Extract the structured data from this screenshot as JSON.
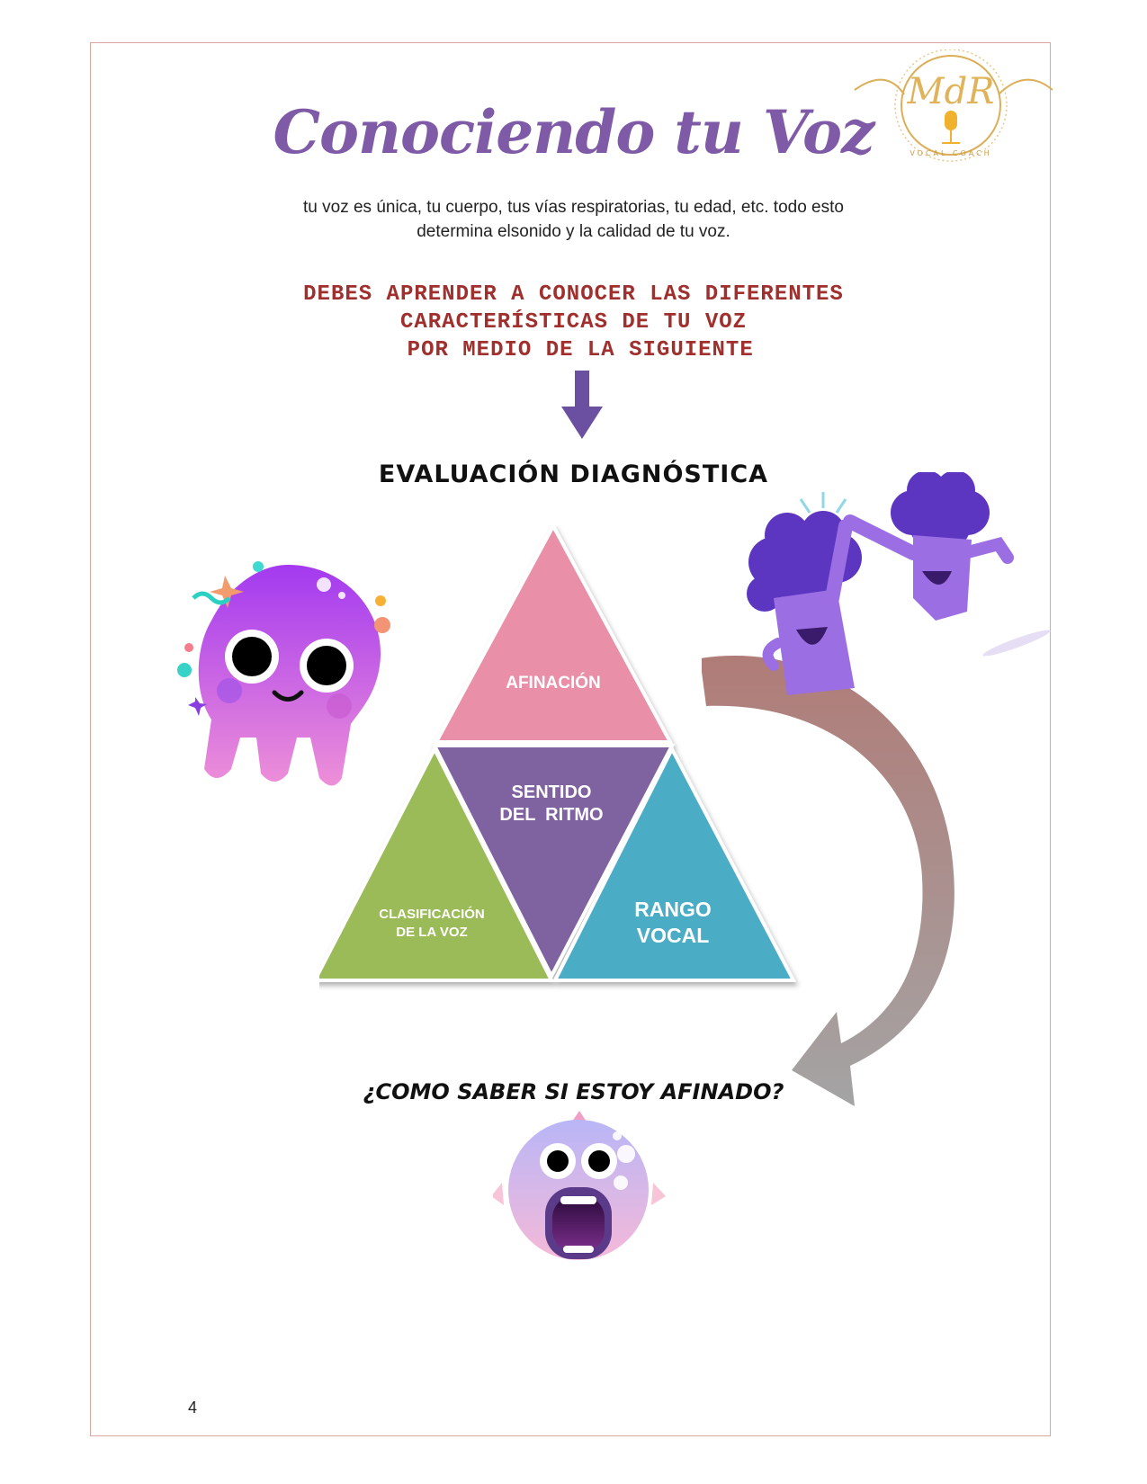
{
  "page": {
    "title": "Conociendo tu Voz",
    "intro_lines": [
      "tu voz es única, tu cuerpo, tus vías respiratorias, tu edad, etc. todo esto",
      "determina elsonido y la calidad de tu voz."
    ],
    "callout_lines": [
      "DEBES APRENDER A CONOCER LAS DIFERENTES",
      "CARACTERÍSTICAS DE TU VOZ",
      " POR MEDIO DE LA SIGUIENTE"
    ],
    "section_heading": "EVALUACIÓN DIAGNÓSTICA",
    "question": "¿COMO SABER SI ESTOY AFINADO?",
    "page_number": "4"
  },
  "logo": {
    "initials": "MdR",
    "caption": "VOCAL COACH"
  },
  "diagram": {
    "top": {
      "label": "AFINACIÓN",
      "color": "#e98fa8"
    },
    "center": {
      "line1": "SENTIDO",
      "line2": "DEL  RITMO",
      "color": "#7f63a0"
    },
    "left": {
      "line1": "CLASIFICACIÓN",
      "line2": "DE LA VOZ",
      "color": "#9bbb59"
    },
    "right": {
      "line1": "RANGO",
      "line2": "VOCAL",
      "color": "#4bacc6"
    }
  },
  "colors": {
    "title": "#7f5aa6",
    "callout": "#a0302e",
    "arrow": "#6b4fa0",
    "frame": "#d9a6a0"
  }
}
